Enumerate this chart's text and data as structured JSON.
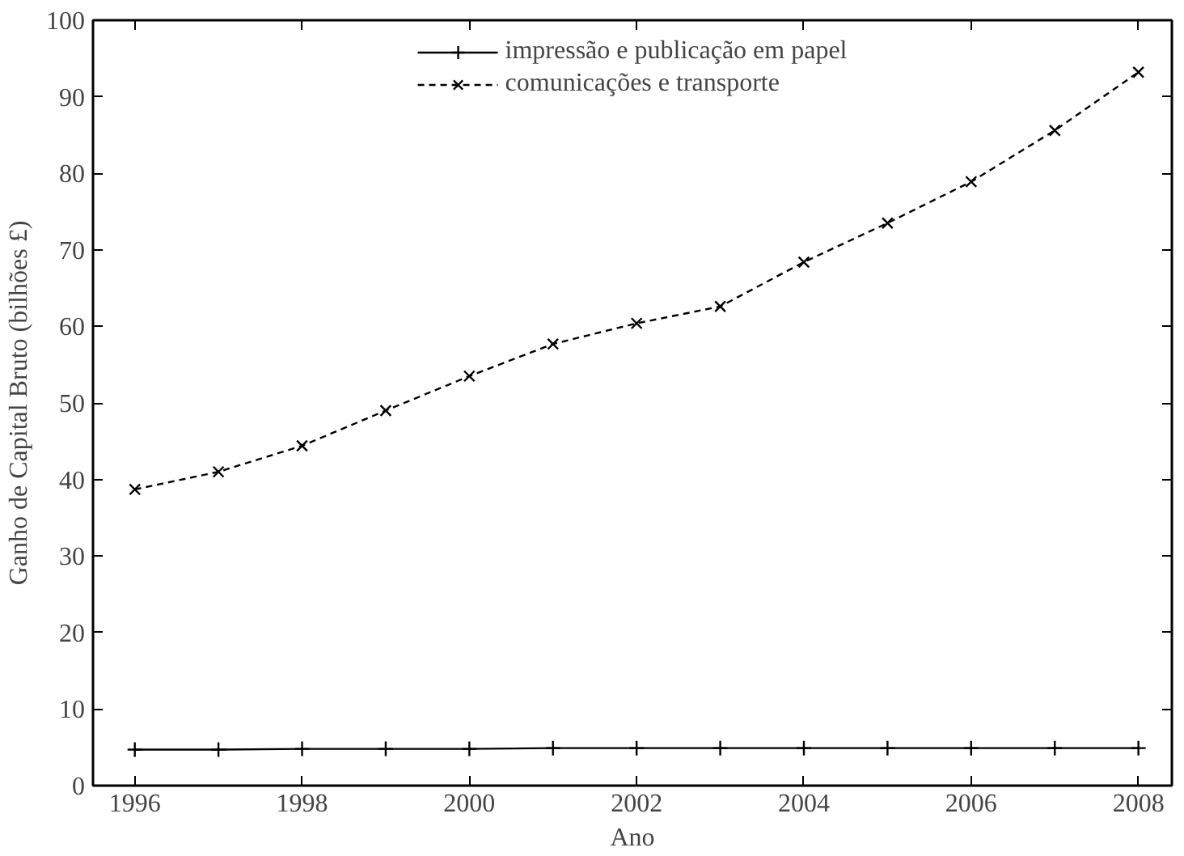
{
  "chart_data": {
    "type": "line",
    "xlabel": "Ano",
    "ylabel": "Ganho de Capital Bruto (bilhões £)",
    "x": [
      1996,
      1997,
      1998,
      1999,
      2000,
      2001,
      2002,
      2003,
      2004,
      2005,
      2006,
      2007,
      2008
    ],
    "series": [
      {
        "name": "impressão e publicação em papel",
        "color": "#000000",
        "line_style": "solid",
        "marker": "cross",
        "values": [
          4.7,
          4.7,
          4.8,
          4.8,
          4.8,
          4.9,
          4.9,
          4.9,
          4.9,
          4.9,
          4.9,
          4.9,
          4.9
        ]
      },
      {
        "name": "comunicações e transporte",
        "color": "#000000",
        "line_style": "dashed",
        "marker": "x",
        "values": [
          38.7,
          41.0,
          44.4,
          49.0,
          53.5,
          57.7,
          60.4,
          62.6,
          68.4,
          73.5,
          78.9,
          85.6,
          93.2
        ]
      }
    ],
    "xlim": [
      1995.5,
      2008.4
    ],
    "ylim": [
      0,
      100
    ],
    "xticks": [
      1996,
      1998,
      2000,
      2002,
      2004,
      2006,
      2008
    ],
    "yticks": [
      0,
      10,
      20,
      30,
      40,
      50,
      60,
      70,
      80,
      90,
      100
    ],
    "grid": false,
    "legend": "top"
  }
}
